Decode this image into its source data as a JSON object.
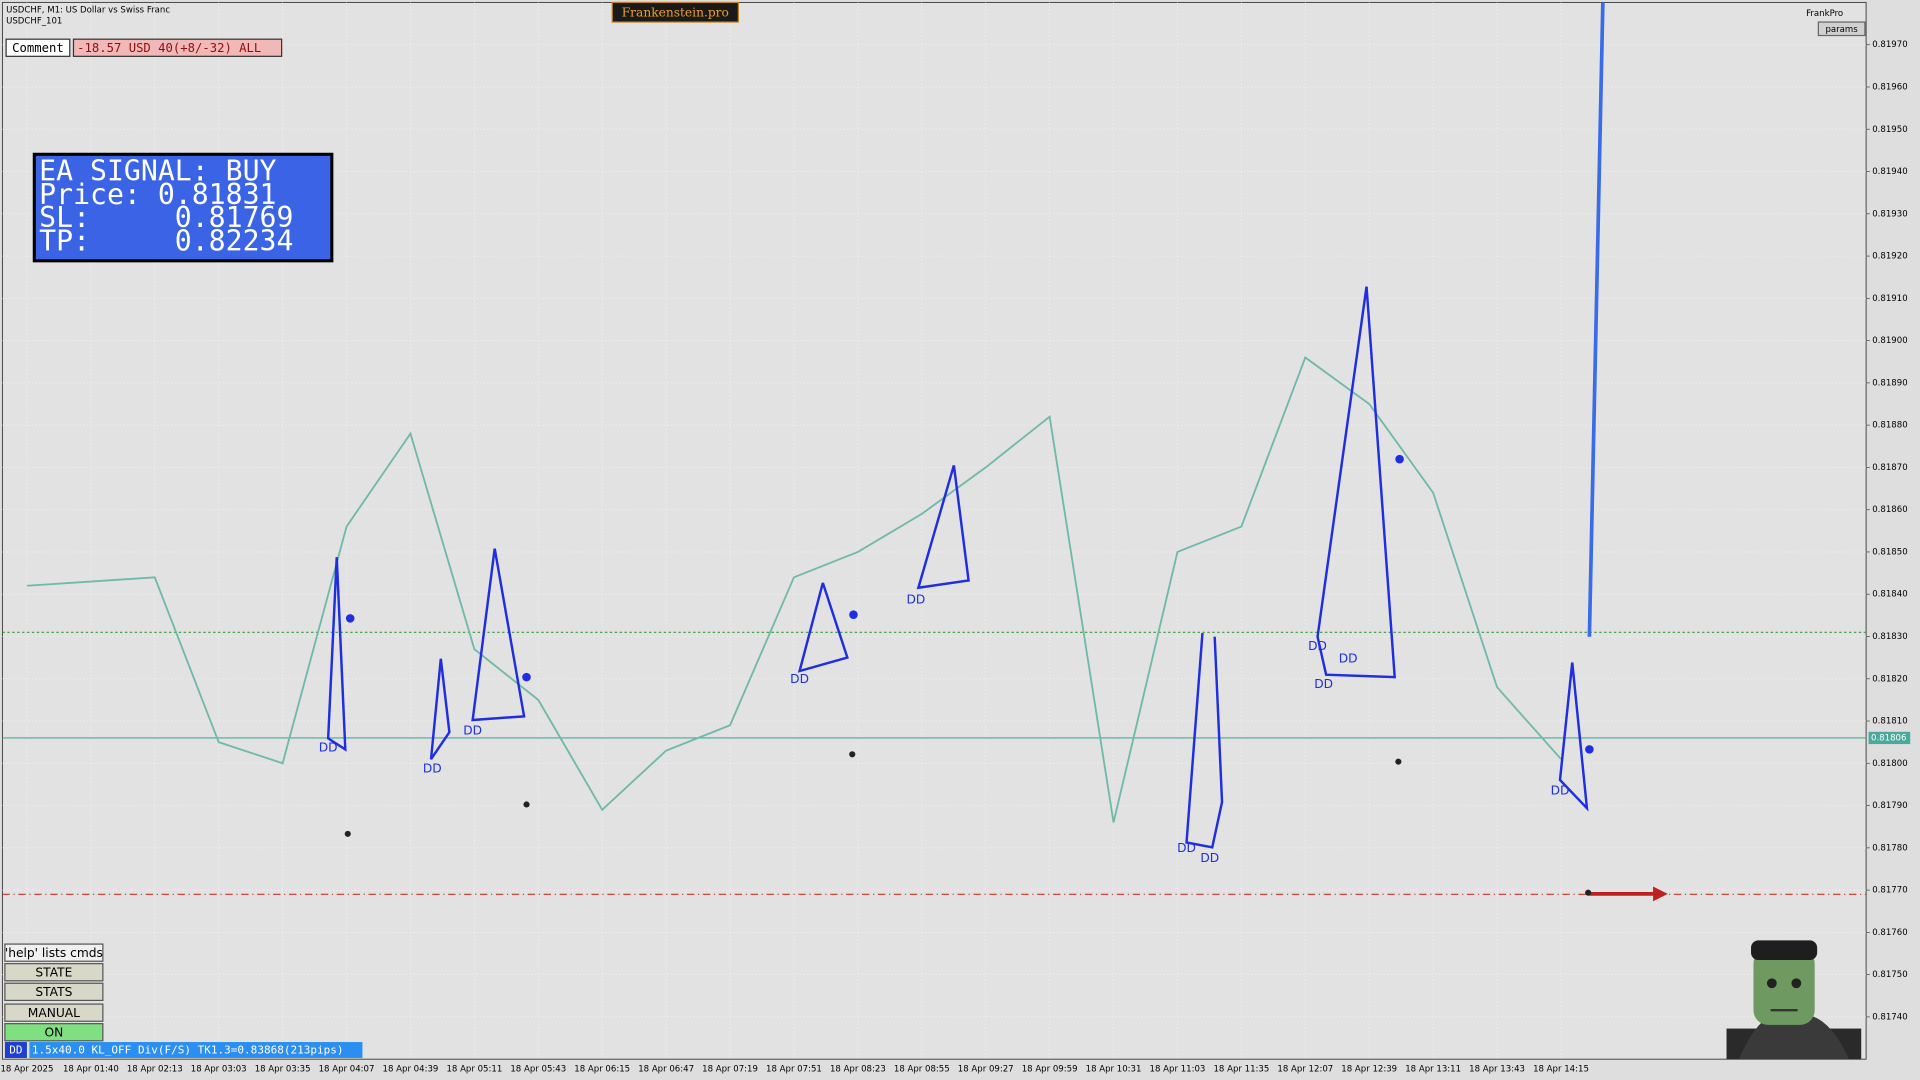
{
  "window": {
    "symbol_title": "USDCHF, M1:  US Dollar vs Swiss Franc",
    "subtitle": "USDCHF_101",
    "brand": "Frankenstein.pro",
    "account": "FrankPro",
    "params_button": "params",
    "comment_label": "Comment",
    "comment_value": "-18.57 USD 40(+8/-32) ALL"
  },
  "signal": {
    "lines": [
      "EA SIGNAL: BUY",
      "Price: 0.81831",
      "SL:     0.81769",
      "TP:     0.82234"
    ]
  },
  "buttons": [
    "'help' lists cmds",
    "STATE",
    "STATS",
    "MANUAL",
    "ON"
  ],
  "status": {
    "tag": "DD",
    "text": "1.5x40.0 KL_OFF Div(F/S) TK1.3=0.83868(213pips)"
  },
  "annotations": [
    "DD",
    "DD",
    "DD",
    "DD",
    "DD",
    "DD",
    "DD",
    "DD",
    "DD",
    "DD",
    "DD"
  ],
  "chart_data": {
    "type": "line",
    "categories": [
      "18 Apr 2025",
      "18 Apr 01:40",
      "18 Apr 02:13",
      "18 Apr 03:03",
      "18 Apr 03:35",
      "18 Apr 04:07",
      "18 Apr 04:39",
      "18 Apr 05:11",
      "18 Apr 05:43",
      "18 Apr 06:15",
      "18 Apr 06:47",
      "18 Apr 07:19",
      "18 Apr 07:51",
      "18 Apr 08:23",
      "18 Apr 08:55",
      "18 Apr 09:27",
      "18 Apr 09:59",
      "18 Apr 10:31",
      "18 Apr 11:03",
      "18 Apr 11:35",
      "18 Apr 12:07",
      "18 Apr 12:39",
      "18 Apr 13:11",
      "18 Apr 13:43",
      "18 Apr 14:15"
    ],
    "values": [
      0.81842,
      0.81843,
      0.81844,
      0.81805,
      0.818,
      0.81856,
      0.81878,
      0.81827,
      0.81815,
      0.81789,
      0.81803,
      0.81809,
      0.81844,
      0.8185,
      0.81859,
      0.8187,
      0.81882,
      0.81786,
      0.8185,
      0.81856,
      0.81896,
      0.81885,
      0.81864,
      0.81818,
      0.81801
    ],
    "color": "#6fb9a9",
    "ylim": [
      0.8173,
      0.8198
    ],
    "yticks": [
      {
        "value": 0.8174,
        "label": "0.81740"
      },
      {
        "value": 0.8175,
        "label": "0.81750"
      },
      {
        "value": 0.8176,
        "label": "0.81760"
      },
      {
        "value": 0.8177,
        "label": "0.81770"
      },
      {
        "value": 0.8178,
        "label": "0.81780"
      },
      {
        "value": 0.8179,
        "label": "0.81790"
      },
      {
        "value": 0.818,
        "label": "0.81800"
      },
      {
        "value": 0.8181,
        "label": "0.81810"
      },
      {
        "value": 0.8182,
        "label": "0.81820"
      },
      {
        "value": 0.8183,
        "label": "0.81830"
      },
      {
        "value": 0.8184,
        "label": "0.81840"
      },
      {
        "value": 0.8185,
        "label": "0.81850"
      },
      {
        "value": 0.8186,
        "label": "0.81860"
      },
      {
        "value": 0.8187,
        "label": "0.81870"
      },
      {
        "value": 0.8188,
        "label": "0.81880"
      },
      {
        "value": 0.8189,
        "label": "0.81890"
      },
      {
        "value": 0.819,
        "label": "0.81900"
      },
      {
        "value": 0.8191,
        "label": "0.81910"
      },
      {
        "value": 0.8192,
        "label": "0.81920"
      },
      {
        "value": 0.8193,
        "label": "0.81930"
      },
      {
        "value": 0.8194,
        "label": "0.81940"
      },
      {
        "value": 0.8195,
        "label": "0.81950"
      },
      {
        "value": 0.8196,
        "label": "0.81960"
      },
      {
        "value": 0.8197,
        "label": "0.81970"
      }
    ],
    "grid": true,
    "levels": [
      {
        "value": 0.81831,
        "color": "#3a9a3a",
        "style": "dotted"
      },
      {
        "value": 0.81806,
        "color": "#4aa99a",
        "style": "solid",
        "label": "0.81806"
      },
      {
        "value": 0.81769,
        "color": "#d03030",
        "style": "dashdot"
      }
    ]
  }
}
